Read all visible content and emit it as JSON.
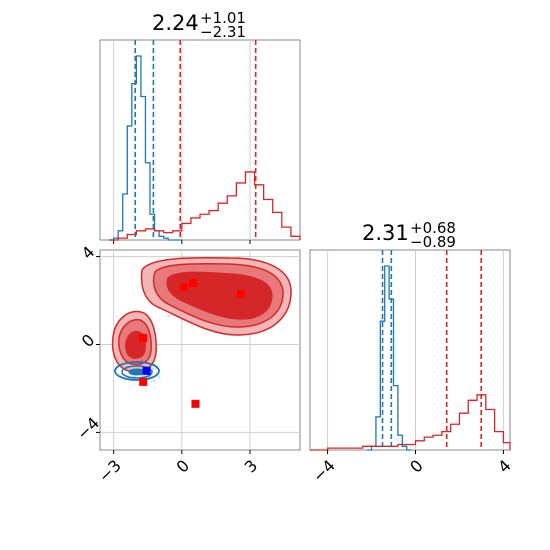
{
  "chart_data": [
    {
      "type": "line",
      "panel": "marginal-x",
      "title": {
        "median": "2.24",
        "plus": "+1.01",
        "minus": "−2.31"
      },
      "xlim": [
        -3.6,
        5.2
      ],
      "grid": true,
      "series": [
        {
          "color": "#1f77b4",
          "x": [
            -3.2,
            -3.0,
            -2.8,
            -2.6,
            -2.4,
            -2.2,
            -2.0,
            -1.8,
            -1.6,
            -1.4,
            -1.2,
            -1.0,
            -0.8,
            -0.6,
            -0.4,
            -0.2,
            0.0
          ],
          "y": [
            0,
            0.01,
            0.05,
            0.25,
            0.62,
            0.85,
            1.0,
            0.78,
            0.42,
            0.14,
            0.05,
            0.02,
            0.01,
            0,
            0,
            0,
            0
          ],
          "quantile_lines": [
            -2.05,
            -1.25
          ]
        },
        {
          "color": "#d62728",
          "x": [
            -3.2,
            -2.8,
            -2.4,
            -2.0,
            -1.6,
            -1.2,
            -0.8,
            -0.4,
            0.0,
            0.4,
            0.8,
            1.2,
            1.6,
            2.0,
            2.4,
            2.8,
            3.2,
            3.6,
            4.0,
            4.4,
            4.8,
            5.2
          ],
          "y": [
            0,
            0.01,
            0.03,
            0.05,
            0.06,
            0.05,
            0.04,
            0.05,
            0.09,
            0.12,
            0.14,
            0.16,
            0.2,
            0.24,
            0.31,
            0.37,
            0.3,
            0.22,
            0.15,
            0.07,
            0.02,
            0
          ],
          "quantile_lines": [
            -0.07,
            3.25
          ]
        }
      ]
    },
    {
      "type": "scatter",
      "panel": "joint",
      "xlim": [
        -3.6,
        5.2
      ],
      "ylim": [
        -4.8,
        4.3
      ],
      "grid": true,
      "xticks": [
        -3,
        0,
        3
      ],
      "yticks": [
        -4,
        0,
        4
      ],
      "points_red": [
        [
          -1.7,
          0.3
        ],
        [
          -1.7,
          -1.7
        ],
        [
          0.1,
          2.6
        ],
        [
          0.5,
          2.8
        ],
        [
          2.6,
          2.3
        ],
        [
          0.6,
          -2.7
        ]
      ],
      "points_blue": [
        [
          -1.55,
          -1.2
        ]
      ]
    },
    {
      "type": "line",
      "panel": "marginal-y",
      "title": {
        "median": "2.31",
        "plus": "+0.68",
        "minus": "−0.89"
      },
      "xlim": [
        -4.8,
        4.3
      ],
      "grid": true,
      "xticks": [
        -4,
        0,
        4
      ],
      "series": [
        {
          "color": "#1f77b4",
          "x": [
            -2.2,
            -2.0,
            -1.8,
            -1.6,
            -1.4,
            -1.2,
            -1.0,
            -0.8,
            -0.6,
            -0.4,
            -0.2
          ],
          "y": [
            0,
            0.02,
            0.18,
            0.7,
            1.0,
            0.82,
            0.35,
            0.08,
            0.02,
            0,
            0
          ],
          "quantile_lines": [
            -1.5,
            -1.1
          ]
        },
        {
          "color": "#d62728",
          "x": [
            -4.8,
            -4.0,
            -3.2,
            -2.4,
            -1.6,
            -0.8,
            0.0,
            0.4,
            0.8,
            1.2,
            1.6,
            2.0,
            2.4,
            2.8,
            3.2,
            3.6,
            4.0,
            4.3
          ],
          "y": [
            0,
            0.01,
            0.01,
            0.02,
            0.02,
            0.03,
            0.05,
            0.07,
            0.08,
            0.1,
            0.14,
            0.2,
            0.27,
            0.3,
            0.22,
            0.1,
            0.04,
            0
          ],
          "quantile_lines": [
            1.42,
            2.99
          ]
        }
      ]
    }
  ]
}
